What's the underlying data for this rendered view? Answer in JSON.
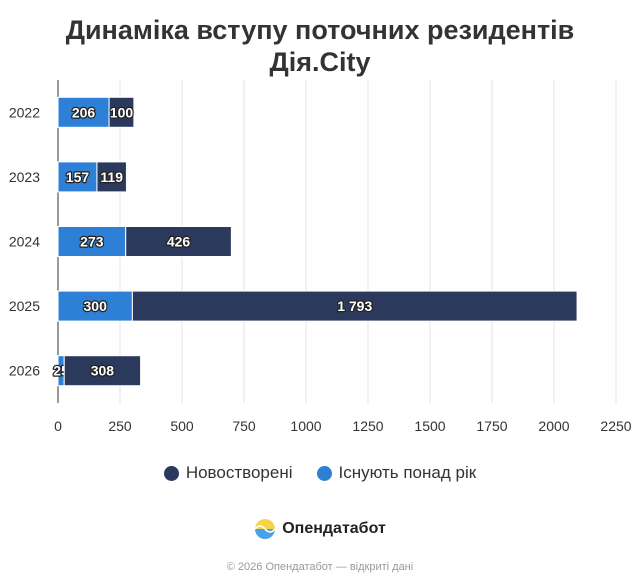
{
  "title": {
    "line1": "Динаміка вступу поточних резидентів",
    "line2": "Дія.City"
  },
  "chart_data": {
    "type": "bar",
    "orientation": "horizontal",
    "stacked": true,
    "categories": [
      "2022",
      "2023",
      "2024",
      "2025",
      "2026"
    ],
    "series": [
      {
        "name": "Існують понад рік",
        "color": "#2e80d6",
        "values": [
          206,
          157,
          273,
          300,
          25
        ],
        "labels": [
          "206",
          "157",
          "273",
          "300",
          "25"
        ]
      },
      {
        "name": "Новостворені",
        "color": "#2b3a5c",
        "values": [
          100,
          119,
          426,
          1793,
          308
        ],
        "labels": [
          "100",
          "119",
          "426",
          "1 793",
          "308"
        ]
      }
    ],
    "xlim": [
      0,
      2250
    ],
    "xticks": [
      0,
      250,
      500,
      750,
      1000,
      1250,
      1500,
      1750,
      2000,
      2250
    ],
    "grid": true,
    "legend_position": "bottom"
  },
  "legend": {
    "items": [
      {
        "label": "Новостворені",
        "color": "#2b3a5c"
      },
      {
        "label": "Існують понад рік",
        "color": "#2e80d6"
      }
    ]
  },
  "brand": {
    "name": "Опендатабот"
  },
  "footer": {
    "text": "© 2026 Опендатабот — відкриті дані"
  }
}
